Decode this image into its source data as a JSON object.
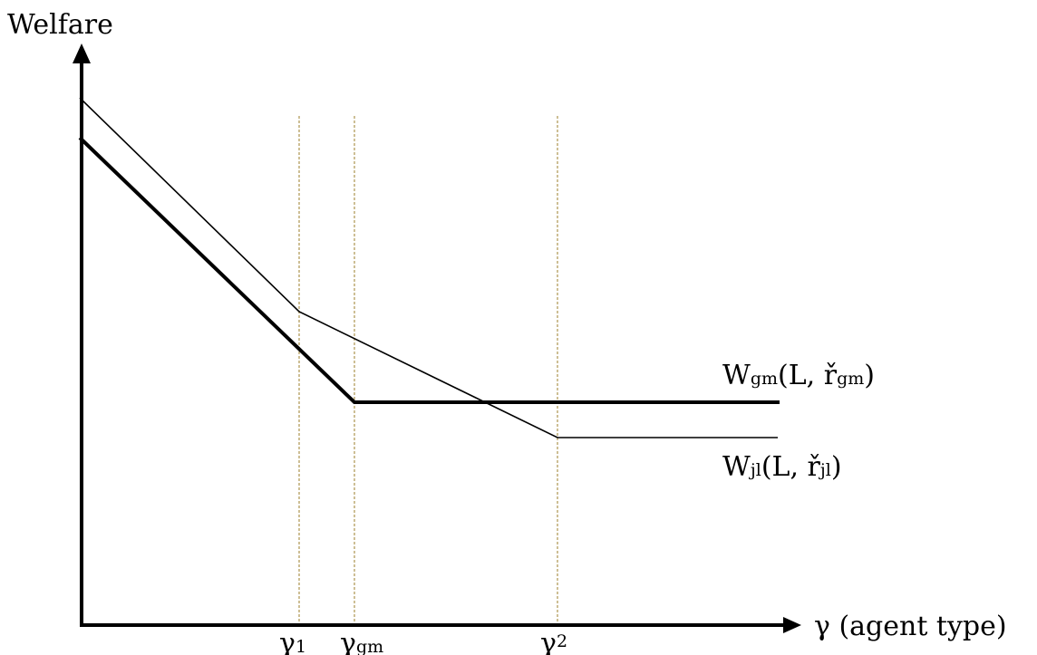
{
  "y_axis": {
    "label": "Welfare"
  },
  "x_axis": {
    "label": "γ (agent type)"
  },
  "markers": [
    {
      "symbol": "γ",
      "subscript": "1",
      "subscript_raised": false
    },
    {
      "symbol": "γ",
      "subscript": "gm",
      "subscript_raised": false
    },
    {
      "symbol": "γ",
      "subscript": "2",
      "subscript_raised": true
    }
  ],
  "curves": {
    "gm": {
      "main": "W",
      "sub1": "gm",
      "mid": "(L, ř",
      "sub2": "gm",
      "tail": ")"
    },
    "jl": {
      "main": "W",
      "sub1": "jl",
      "mid": "(L, ř",
      "sub2": "jl",
      "tail": ")"
    }
  },
  "colors": {
    "axis": "#000000",
    "guide": "#b8a468"
  }
}
